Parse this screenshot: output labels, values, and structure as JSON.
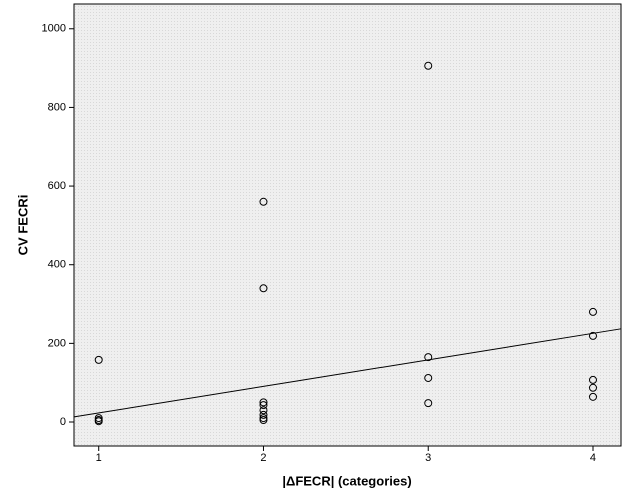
{
  "chart_data": {
    "type": "scatter",
    "x_label": "|ΔFECR|  (categories)",
    "y_label": "CV FECRi",
    "x": [
      1,
      1,
      1,
      1,
      2,
      2,
      2,
      2,
      2,
      2,
      2,
      2,
      3,
      3,
      3,
      3,
      4,
      4,
      4,
      4,
      4
    ],
    "values": [
      158,
      10,
      5,
      2,
      560,
      340,
      50,
      43,
      30,
      18,
      10,
      5,
      906,
      165,
      112,
      48,
      280,
      219,
      107,
      87,
      64
    ],
    "color": "#000000",
    "trend_line": {
      "x": [
        0.85,
        4.17
      ],
      "y": [
        13,
        237
      ]
    },
    "xlim": [
      0.85,
      4.17
    ],
    "xticks": [
      1,
      2,
      3,
      4
    ],
    "ylim": [
      -61,
      1063
    ],
    "yticks": [
      0,
      200,
      400,
      600,
      800,
      1000
    ]
  }
}
